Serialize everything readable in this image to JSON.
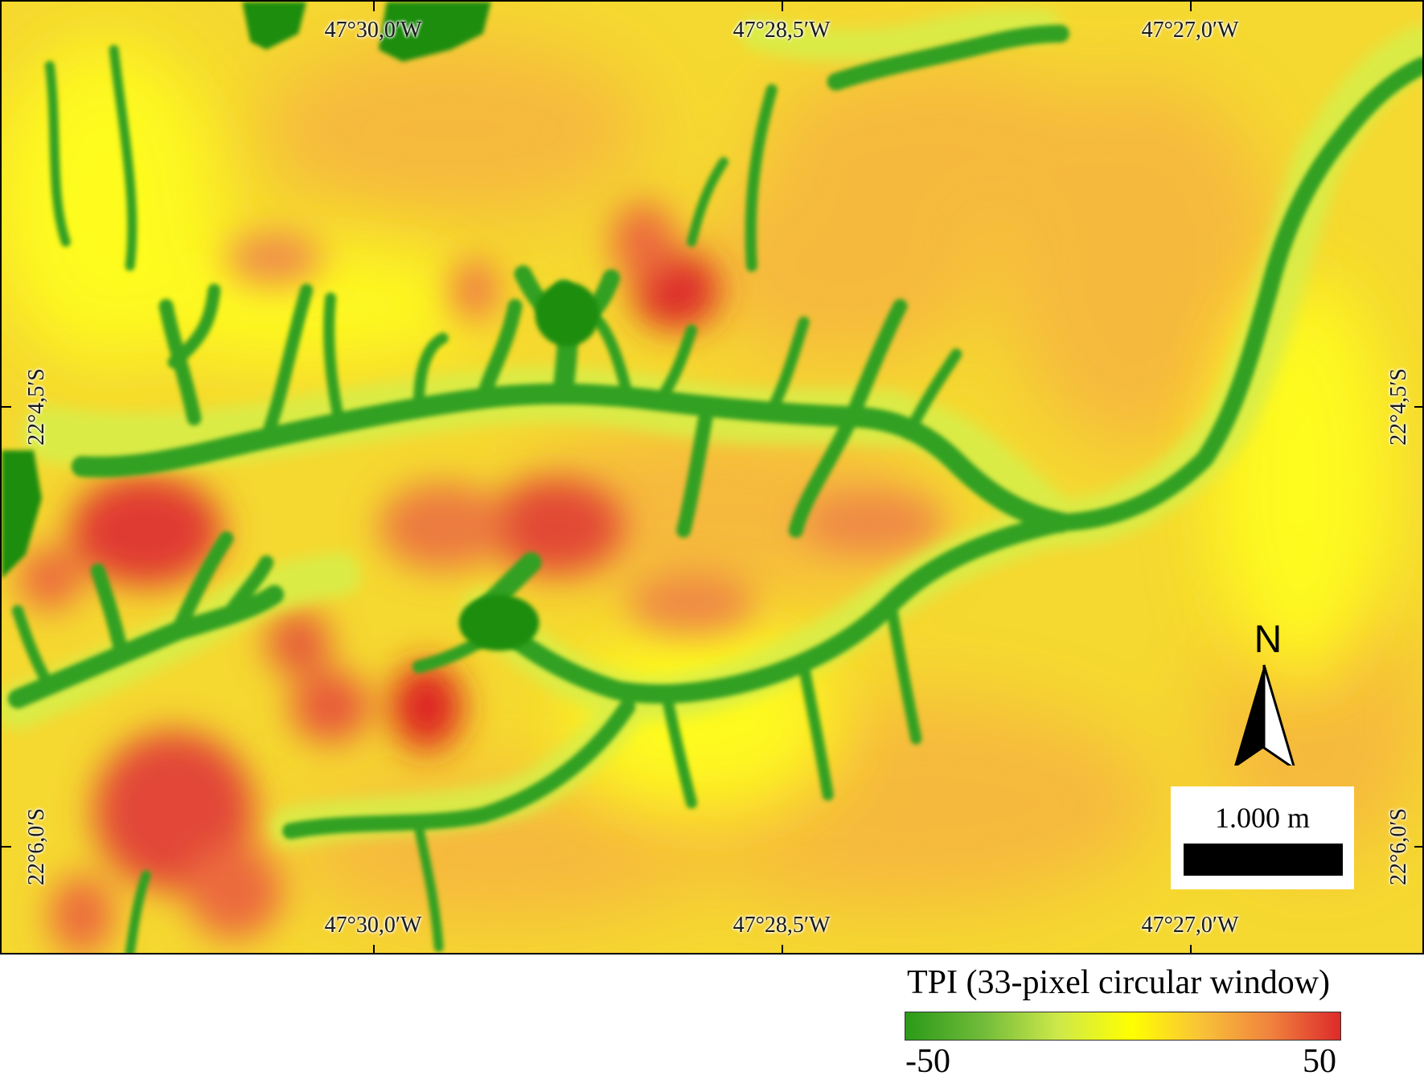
{
  "map": {
    "x_labels_top": [
      "47°30,0′W",
      "47°28,5′W",
      "47°27,0′W"
    ],
    "x_labels_bottom": [
      "47°30,0′W",
      "47°28,5′W",
      "47°27,0′W"
    ],
    "y_labels_left": [
      "22°4,5′S",
      "22°6,0′S"
    ],
    "y_labels_right": [
      "22°4,5′S",
      "22°6,0′S"
    ]
  },
  "north_arrow": {
    "label": "N",
    "icon": "north-arrow-icon"
  },
  "scale_bar": {
    "label": "1.000 m"
  },
  "legend": {
    "title": "TPI (33-pixel circular window)",
    "min_label": "-50",
    "max_label": "50",
    "colors": [
      "#2a9a18",
      "#cde84a",
      "#ffff00",
      "#f9c238",
      "#dd2a2a"
    ]
  }
}
